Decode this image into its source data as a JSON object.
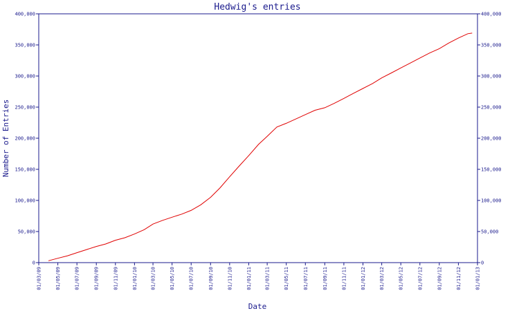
{
  "chart_data": {
    "type": "line",
    "title": "Hedwig's entries",
    "xlabel": "Date",
    "ylabel": "Number of Entries",
    "ylim": [
      0,
      400000
    ],
    "y_ticks": [
      0,
      50000,
      100000,
      150000,
      200000,
      250000,
      300000,
      350000,
      400000
    ],
    "y_tick_labels": [
      "0",
      "50,000",
      "100,000",
      "150,000",
      "200,000",
      "250,000",
      "300,000",
      "350,000",
      "400,000"
    ],
    "x_tick_labels": [
      "01/03/09",
      "01/05/09",
      "01/07/09",
      "01/09/09",
      "01/11/09",
      "01/01/10",
      "01/03/10",
      "01/05/10",
      "01/07/10",
      "01/09/10",
      "01/11/10",
      "01/01/11",
      "01/03/11",
      "01/05/11",
      "01/07/11",
      "01/09/11",
      "01/11/11",
      "01/01/12",
      "01/03/12",
      "01/05/12",
      "01/07/12",
      "01/09/12",
      "01/11/12",
      "01/01/13"
    ],
    "xlim": [
      "2009-03-01",
      "2013-01-01"
    ],
    "right_axis": true,
    "grid": false,
    "series": [
      {
        "color": "#e00000",
        "points": [
          [
            "2009-04-01",
            3000
          ],
          [
            "2009-05-01",
            7000
          ],
          [
            "2009-06-01",
            11000
          ],
          [
            "2009-07-01",
            16000
          ],
          [
            "2009-08-01",
            21000
          ],
          [
            "2009-09-01",
            26000
          ],
          [
            "2009-10-01",
            30000
          ],
          [
            "2009-11-01",
            36000
          ],
          [
            "2009-12-01",
            40000
          ],
          [
            "2010-01-01",
            46000
          ],
          [
            "2010-02-01",
            53000
          ],
          [
            "2010-03-01",
            62000
          ],
          [
            "2010-04-01",
            68000
          ],
          [
            "2010-05-01",
            73000
          ],
          [
            "2010-06-01",
            78000
          ],
          [
            "2010-07-01",
            84000
          ],
          [
            "2010-08-01",
            93000
          ],
          [
            "2010-09-01",
            105000
          ],
          [
            "2010-10-01",
            120000
          ],
          [
            "2010-11-01",
            138000
          ],
          [
            "2010-12-01",
            155000
          ],
          [
            "2011-01-01",
            172000
          ],
          [
            "2011-02-01",
            190000
          ],
          [
            "2011-03-01",
            203000
          ],
          [
            "2011-04-01",
            218000
          ],
          [
            "2011-05-01",
            224000
          ],
          [
            "2011-06-01",
            231000
          ],
          [
            "2011-07-01",
            238000
          ],
          [
            "2011-08-01",
            245000
          ],
          [
            "2011-09-01",
            249000
          ],
          [
            "2011-10-01",
            256000
          ],
          [
            "2011-11-01",
            264000
          ],
          [
            "2011-12-01",
            272000
          ],
          [
            "2012-01-01",
            280000
          ],
          [
            "2012-02-01",
            288000
          ],
          [
            "2012-03-01",
            297000
          ],
          [
            "2012-04-01",
            305000
          ],
          [
            "2012-05-01",
            313000
          ],
          [
            "2012-06-01",
            321000
          ],
          [
            "2012-07-01",
            329000
          ],
          [
            "2012-08-01",
            337000
          ],
          [
            "2012-09-01",
            344000
          ],
          [
            "2012-10-01",
            353000
          ],
          [
            "2012-11-01",
            361000
          ],
          [
            "2012-12-01",
            368000
          ],
          [
            "2012-12-15",
            369000
          ]
        ]
      }
    ]
  }
}
